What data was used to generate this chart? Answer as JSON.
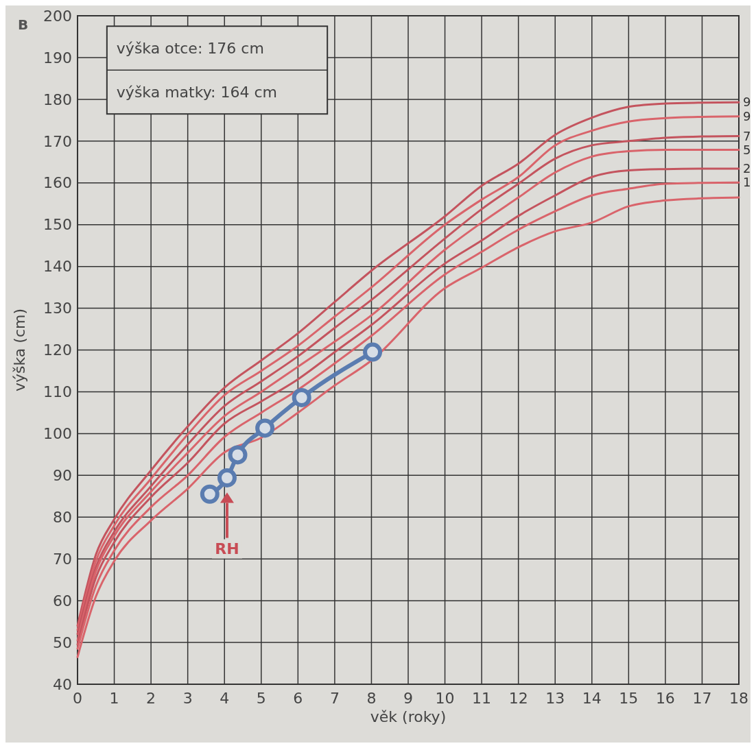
{
  "chart_data": {
    "type": "line",
    "xlabel": "věk (roky)",
    "ylabel": "výška (cm)",
    "xlim": [
      0,
      18
    ],
    "ylim": [
      40,
      200
    ],
    "xticks": [
      0,
      1,
      2,
      3,
      4,
      5,
      6,
      7,
      8,
      9,
      10,
      11,
      12,
      13,
      14,
      15,
      16,
      17,
      18
    ],
    "yticks": [
      40,
      50,
      60,
      70,
      80,
      90,
      100,
      110,
      120,
      130,
      140,
      150,
      160,
      170,
      180,
      190,
      200
    ],
    "grid": true,
    "annotations": [
      "B",
      "výška otce: 176 cm",
      "výška matky: 164 cm",
      "RH"
    ],
    "x": [
      0,
      0.5,
      1,
      2,
      3,
      4,
      5,
      6,
      7,
      8,
      10,
      11,
      12,
      13,
      14,
      15,
      16,
      17,
      18
    ],
    "series": [
      {
        "name": "9",
        "color": "#c4545e",
        "marker": "none",
        "values": [
          54,
          71,
          79.5,
          91.2,
          101.7,
          111,
          117.5,
          124,
          131.5,
          139,
          152,
          159.3,
          164.6,
          171.5,
          175.6,
          178.2,
          179,
          179.2,
          179.3
        ]
      },
      {
        "name": "9",
        "color": "#d9646b",
        "marker": "none",
        "values": [
          53,
          69.5,
          78,
          89.2,
          99.8,
          109.2,
          115,
          121,
          128,
          135,
          150,
          156,
          161.4,
          169,
          172.5,
          174.7,
          175.5,
          175.8,
          175.9
        ]
      },
      {
        "name": "7",
        "color": "#c4545e",
        "marker": "none",
        "values": [
          52,
          68,
          76.5,
          87.4,
          97.4,
          106.6,
          112.5,
          118.5,
          125.3,
          132,
          146.7,
          153.7,
          159.8,
          165.8,
          169,
          170,
          170.8,
          171.1,
          171.2
        ]
      },
      {
        "name": "5",
        "color": "#d9646b",
        "marker": "none",
        "values": [
          50.5,
          67,
          75.5,
          86.1,
          95.4,
          104.2,
          110,
          116,
          122,
          128.3,
          144,
          150.5,
          156.5,
          162.5,
          166.3,
          167.6,
          167.9,
          167.9,
          167.9
        ]
      },
      {
        "name": "2",
        "color": "#c4545e",
        "marker": "none",
        "values": [
          49.5,
          65.5,
          74,
          84.8,
          93,
          102.4,
          107.7,
          113,
          119.5,
          126,
          140.7,
          146.2,
          152.1,
          157,
          161.4,
          163,
          163.3,
          163.4,
          163.4
        ]
      },
      {
        "name": "1",
        "color": "#d9646b",
        "marker": "none",
        "values": [
          48.5,
          63.5,
          72,
          82.4,
          90,
          99.2,
          105,
          110.5,
          116.8,
          123.4,
          138.1,
          143.5,
          148.8,
          153.2,
          157,
          158.6,
          159.8,
          160,
          160.1
        ]
      },
      {
        "color": "#d9646b",
        "marker": "none",
        "values": [
          46.5,
          61,
          69.5,
          79.2,
          86.8,
          95.5,
          99,
          105,
          111.5,
          117.5,
          134.8,
          139.7,
          144.6,
          148.4,
          150.5,
          154.4,
          155.8,
          156.3,
          156.5
        ]
      },
      {
        "color": "#5a7cb0",
        "marker": "circle",
        "x": [
          3.6,
          4.07,
          4.36,
          5.1,
          6.1,
          8.03
        ],
        "values": [
          85.5,
          89.4,
          94.9,
          101.3,
          108.6,
          119.5
        ]
      }
    ]
  }
}
